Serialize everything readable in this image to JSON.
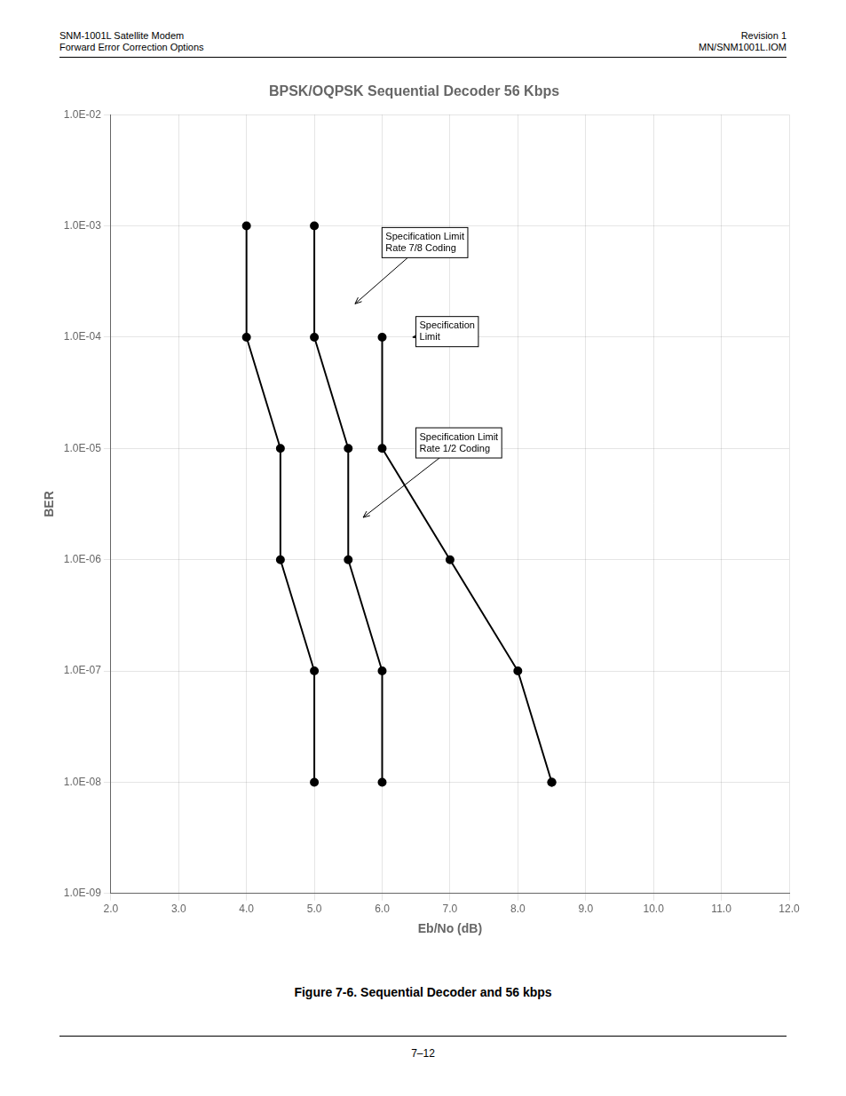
{
  "chart_data": {
    "type": "line",
    "title": "BPSK/OQPSK Sequential Decoder 56 Kbps",
    "x_label": "Eb/No (dB)",
    "y_label": "BER",
    "log": "y",
    "grid": true,
    "xlim": [
      2.0,
      12.0
    ],
    "ylim": [
      1e-09,
      0.01
    ],
    "xticks": [
      {
        "value": 2.0,
        "label": "2.0"
      },
      {
        "value": 3.0,
        "label": "3.0"
      },
      {
        "value": 4.0,
        "label": "4.0"
      },
      {
        "value": 5.0,
        "label": "5.0"
      },
      {
        "value": 6.0,
        "label": "6.0"
      },
      {
        "value": 7.0,
        "label": "7.0"
      },
      {
        "value": 8.0,
        "label": "8.0"
      },
      {
        "value": 9.0,
        "label": "9.0"
      },
      {
        "value": 10.0,
        "label": "10.0"
      },
      {
        "value": 11.0,
        "label": "11.0"
      },
      {
        "value": 12.0,
        "label": "12.0"
      }
    ],
    "yticks": [
      {
        "value": 1e-09,
        "label": "1.0E-09"
      },
      {
        "value": 1e-08,
        "label": "1.0E-08"
      },
      {
        "value": 1e-07,
        "label": "1.0E-07"
      },
      {
        "value": 1e-06,
        "label": "1.0E-06"
      },
      {
        "value": 1e-05,
        "label": "1.0E-05"
      },
      {
        "value": 0.0001,
        "label": "1.0E-04"
      },
      {
        "value": 0.001,
        "label": "1.0E-03"
      },
      {
        "value": 0.01,
        "label": "1.0E-02"
      }
    ],
    "series": [
      {
        "color": "#000000",
        "marker": "circle",
        "line_style": "solid",
        "x": [
          4.0,
          4.0,
          4.5,
          4.5,
          5.0,
          5.0
        ],
        "values": [
          0.001,
          0.0001,
          1e-05,
          1e-06,
          1e-07,
          1e-08
        ]
      },
      {
        "color": "#000000",
        "marker": "circle",
        "line_style": "solid",
        "x": [
          5.0,
          5.0,
          5.5,
          5.5,
          6.0,
          6.0
        ],
        "values": [
          0.001,
          0.0001,
          1e-05,
          1e-06,
          1e-07,
          1e-08
        ]
      },
      {
        "color": "#000000",
        "marker": "circle",
        "line_style": "solid",
        "x": [
          6.0,
          6.0,
          7.0,
          8.0,
          8.5,
          8.5
        ],
        "values": [
          0.0001,
          1e-05,
          1e-06,
          1e-07,
          1e-08,
          1e-08
        ]
      }
    ],
    "annotations": [
      {
        "text": "Specification Limit\nRate 7/8 Coding",
        "x": 5.6,
        "y": 0.00019952623149688796,
        "text_x": 6.05,
        "text_y": 0.000707945784384138
      },
      {
        "text": "Specification\nLimit",
        "x": 6.45,
        "y": 0.0001,
        "text_x": 6.55,
        "text_y": 0.00011220184543019633
      },
      {
        "text": "Specification Limit\nRate 1/2 Coding",
        "x": 5.72,
        "y": 2.39883291901949e-06,
        "text_x": 6.55,
        "text_y": 1.1220184543019633e-05
      }
    ],
    "header_left": [
      "SNM-1001L Satellite Modem",
      "Forward Error Correction Options"
    ],
    "header_right": [
      "Revision 1",
      "MN/SNM1001L.IOM"
    ],
    "caption": "Figure 7-6.  Sequential Decoder and 56 kbps",
    "page_number": "7–12"
  }
}
